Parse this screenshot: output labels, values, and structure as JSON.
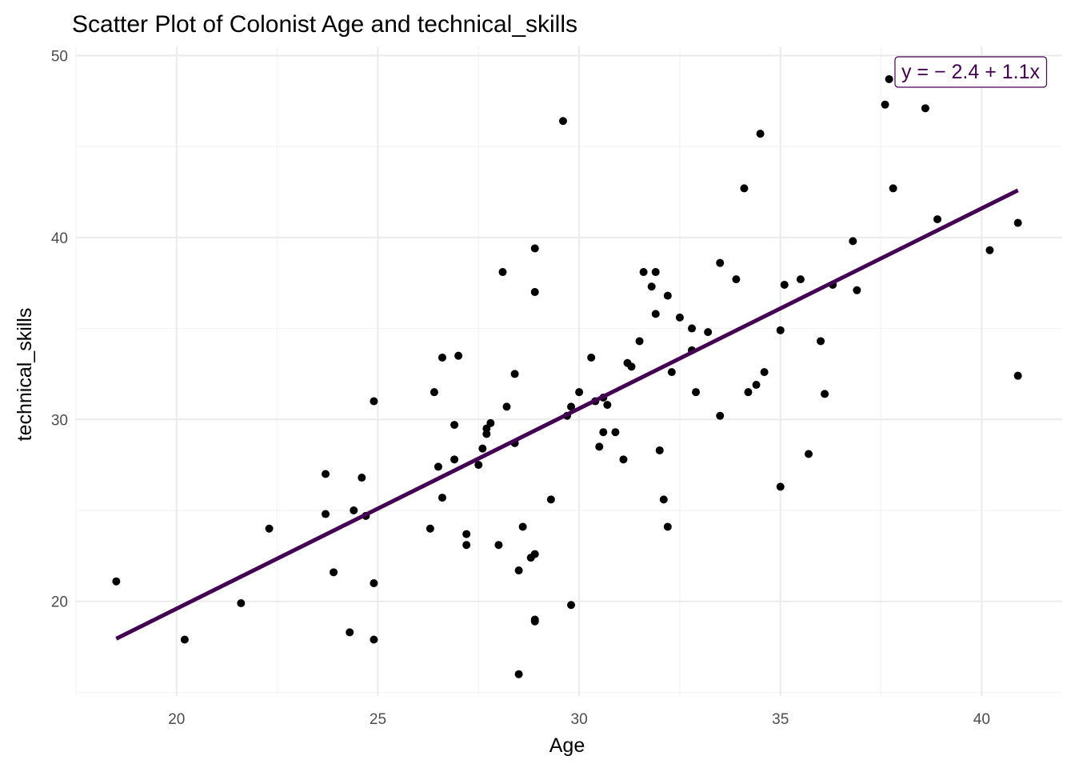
{
  "chart_data": {
    "type": "scatter",
    "title": "Scatter Plot of Colonist Age and technical_skills",
    "xlabel": "Age",
    "ylabel": "technical_skills",
    "xlim": [
      17.5,
      42.0
    ],
    "ylim": [
      14.8,
      50.5
    ],
    "xticks": [
      20,
      25,
      30,
      35,
      40
    ],
    "yticks": [
      20,
      30,
      40,
      50
    ],
    "xtick_labels": [
      "20",
      "25",
      "30",
      "35",
      "40"
    ],
    "ytick_labels": [
      "20",
      "30",
      "40",
      "50"
    ],
    "grid": true,
    "point_color": "#000000",
    "line_color": "#440154",
    "regression": {
      "intercept": -2.4,
      "slope": 1.1,
      "x_range": [
        18.5,
        40.9
      ]
    },
    "equation_label": "y = − 2.4 + 1.1x",
    "legend_position": "top-right",
    "points": [
      {
        "x": 18.5,
        "y": 21.1
      },
      {
        "x": 20.2,
        "y": 17.9
      },
      {
        "x": 21.6,
        "y": 19.9
      },
      {
        "x": 22.3,
        "y": 24.0
      },
      {
        "x": 23.7,
        "y": 27.0
      },
      {
        "x": 23.7,
        "y": 24.8
      },
      {
        "x": 23.9,
        "y": 21.6
      },
      {
        "x": 24.3,
        "y": 18.3
      },
      {
        "x": 24.4,
        "y": 25.0
      },
      {
        "x": 24.6,
        "y": 26.8
      },
      {
        "x": 24.7,
        "y": 24.7
      },
      {
        "x": 24.9,
        "y": 31.0
      },
      {
        "x": 24.9,
        "y": 21.0
      },
      {
        "x": 24.9,
        "y": 17.9
      },
      {
        "x": 26.3,
        "y": 24.0
      },
      {
        "x": 26.4,
        "y": 31.5
      },
      {
        "x": 26.5,
        "y": 27.4
      },
      {
        "x": 26.6,
        "y": 33.4
      },
      {
        "x": 26.6,
        "y": 25.7
      },
      {
        "x": 26.9,
        "y": 29.7
      },
      {
        "x": 26.9,
        "y": 27.8
      },
      {
        "x": 27.0,
        "y": 33.5
      },
      {
        "x": 27.2,
        "y": 23.7
      },
      {
        "x": 27.2,
        "y": 23.1
      },
      {
        "x": 27.5,
        "y": 27.5
      },
      {
        "x": 27.6,
        "y": 28.4
      },
      {
        "x": 27.7,
        "y": 29.2
      },
      {
        "x": 27.7,
        "y": 29.5
      },
      {
        "x": 27.8,
        "y": 29.8
      },
      {
        "x": 28.0,
        "y": 23.1
      },
      {
        "x": 28.1,
        "y": 38.1
      },
      {
        "x": 28.2,
        "y": 30.7
      },
      {
        "x": 28.4,
        "y": 28.7
      },
      {
        "x": 28.4,
        "y": 32.5
      },
      {
        "x": 28.5,
        "y": 16.0
      },
      {
        "x": 28.5,
        "y": 21.7
      },
      {
        "x": 28.6,
        "y": 24.1
      },
      {
        "x": 28.8,
        "y": 22.4
      },
      {
        "x": 28.9,
        "y": 22.6
      },
      {
        "x": 28.9,
        "y": 39.4
      },
      {
        "x": 28.9,
        "y": 37.0
      },
      {
        "x": 28.9,
        "y": 18.9
      },
      {
        "x": 28.9,
        "y": 19.0
      },
      {
        "x": 29.3,
        "y": 25.6
      },
      {
        "x": 29.6,
        "y": 46.4
      },
      {
        "x": 29.7,
        "y": 30.2
      },
      {
        "x": 29.8,
        "y": 30.7
      },
      {
        "x": 29.8,
        "y": 19.8
      },
      {
        "x": 30.0,
        "y": 31.5
      },
      {
        "x": 30.3,
        "y": 33.4
      },
      {
        "x": 30.4,
        "y": 31.0
      },
      {
        "x": 30.5,
        "y": 28.5
      },
      {
        "x": 30.6,
        "y": 29.3
      },
      {
        "x": 30.6,
        "y": 31.2
      },
      {
        "x": 30.7,
        "y": 30.8
      },
      {
        "x": 30.9,
        "y": 29.3
      },
      {
        "x": 31.1,
        "y": 27.8
      },
      {
        "x": 31.2,
        "y": 33.1
      },
      {
        "x": 31.3,
        "y": 32.9
      },
      {
        "x": 31.5,
        "y": 34.3
      },
      {
        "x": 31.6,
        "y": 38.1
      },
      {
        "x": 31.8,
        "y": 37.3
      },
      {
        "x": 31.9,
        "y": 38.1
      },
      {
        "x": 31.9,
        "y": 35.8
      },
      {
        "x": 32.0,
        "y": 28.3
      },
      {
        "x": 32.1,
        "y": 25.6
      },
      {
        "x": 32.2,
        "y": 36.8
      },
      {
        "x": 32.2,
        "y": 24.1
      },
      {
        "x": 32.3,
        "y": 32.6
      },
      {
        "x": 32.5,
        "y": 35.6
      },
      {
        "x": 32.8,
        "y": 35.0
      },
      {
        "x": 32.8,
        "y": 33.8
      },
      {
        "x": 32.9,
        "y": 31.5
      },
      {
        "x": 33.2,
        "y": 34.8
      },
      {
        "x": 33.5,
        "y": 38.6
      },
      {
        "x": 33.5,
        "y": 30.2
      },
      {
        "x": 33.9,
        "y": 37.7
      },
      {
        "x": 34.1,
        "y": 42.7
      },
      {
        "x": 34.2,
        "y": 31.5
      },
      {
        "x": 34.4,
        "y": 31.9
      },
      {
        "x": 34.5,
        "y": 45.7
      },
      {
        "x": 34.6,
        "y": 32.6
      },
      {
        "x": 35.0,
        "y": 26.3
      },
      {
        "x": 35.0,
        "y": 34.9
      },
      {
        "x": 35.1,
        "y": 37.4
      },
      {
        "x": 35.5,
        "y": 37.7
      },
      {
        "x": 35.7,
        "y": 28.1
      },
      {
        "x": 36.0,
        "y": 34.3
      },
      {
        "x": 36.1,
        "y": 31.4
      },
      {
        "x": 36.3,
        "y": 37.4
      },
      {
        "x": 36.8,
        "y": 39.8
      },
      {
        "x": 36.9,
        "y": 37.1
      },
      {
        "x": 37.6,
        "y": 47.3
      },
      {
        "x": 37.7,
        "y": 48.7
      },
      {
        "x": 37.8,
        "y": 42.7
      },
      {
        "x": 38.6,
        "y": 47.1
      },
      {
        "x": 38.9,
        "y": 41.0
      },
      {
        "x": 40.2,
        "y": 39.3
      },
      {
        "x": 40.9,
        "y": 40.8
      },
      {
        "x": 40.9,
        "y": 32.4
      }
    ]
  }
}
